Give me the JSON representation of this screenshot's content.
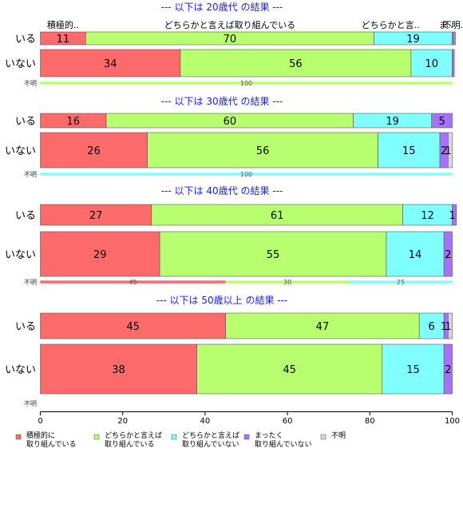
{
  "chart_data": {
    "type": "bar",
    "orientation": "horizontal",
    "stacked": true,
    "xlim": [
      0,
      100
    ],
    "x_ticks": [
      0,
      20,
      40,
      60,
      80,
      100
    ],
    "grid": false,
    "legend_position": "bottom",
    "categories": [
      "積極的に取り組んでいる",
      "どちらかと言えば取り組んでいる",
      "どちらかと言えば取り組んでいない",
      "まったく取り組んでいない",
      "不明"
    ],
    "colors": [
      "#ff6b6b",
      "#b8ff70",
      "#80ffff",
      "#a970ff",
      "#d9d9d9"
    ],
    "legend": [
      {
        "line1": "積極的に",
        "line2": "取り組んでいる"
      },
      {
        "line1": "どちらかと言えば",
        "line2": "取り組んでいる"
      },
      {
        "line1": "どちらかと言えば",
        "line2": "取り組んでいない"
      },
      {
        "line1": "まったく",
        "line2": "取り組んでいない"
      },
      {
        "line1": "不明",
        "line2": ""
      }
    ],
    "top_labels": [
      {
        "text": "積極的..",
        "value": 5.5
      },
      {
        "text": "どちらかと言えば取り組んでいる",
        "value": 46
      },
      {
        "text": "どちらかと言..",
        "value": 85
      },
      {
        "text": "ま..",
        "value": 98.5
      },
      {
        "text": "不明..",
        "value": 100.5
      }
    ],
    "panels": [
      {
        "title": "--- 以下は 20歳代 の結果 ---",
        "rows": [
          {
            "label": "いる",
            "values": [
              11,
              70,
              19,
              0.5,
              0.3
            ]
          },
          {
            "label": "いない",
            "values": [
              34,
              56,
              10,
              0.5,
              0
            ]
          },
          {
            "label": "不明",
            "values": [
              0,
              100,
              0,
              0,
              0
            ],
            "thin": true
          }
        ]
      },
      {
        "title": "--- 以下は 30歳代 の結果 ---",
        "rows": [
          {
            "label": "いる",
            "values": [
              16,
              60,
              19,
              5,
              0
            ]
          },
          {
            "label": "いない",
            "values": [
              26,
              56,
              15,
              2,
              1
            ]
          },
          {
            "label": "不明",
            "values": [
              0,
              0,
              100,
              0,
              0
            ],
            "thin": true
          }
        ]
      },
      {
        "title": "--- 以下は 40歳代 の結果 ---",
        "rows": [
          {
            "label": "いる",
            "values": [
              27,
              61,
              12,
              1,
              0
            ]
          },
          {
            "label": "いない",
            "values": [
              29,
              55,
              14,
              2,
              0
            ]
          },
          {
            "label": "不明",
            "values": [
              45,
              30,
              25,
              0,
              0
            ],
            "thin": true
          }
        ]
      },
      {
        "title": "--- 以下は 50歳以上 の結果 ---",
        "rows": [
          {
            "label": "いる",
            "values": [
              45,
              47,
              6,
              1,
              1
            ]
          },
          {
            "label": "いない",
            "values": [
              38,
              45,
              15,
              2,
              0
            ]
          },
          {
            "label": "不明",
            "values": [
              0,
              0,
              0,
              0,
              0
            ],
            "thin": true
          }
        ]
      }
    ]
  }
}
